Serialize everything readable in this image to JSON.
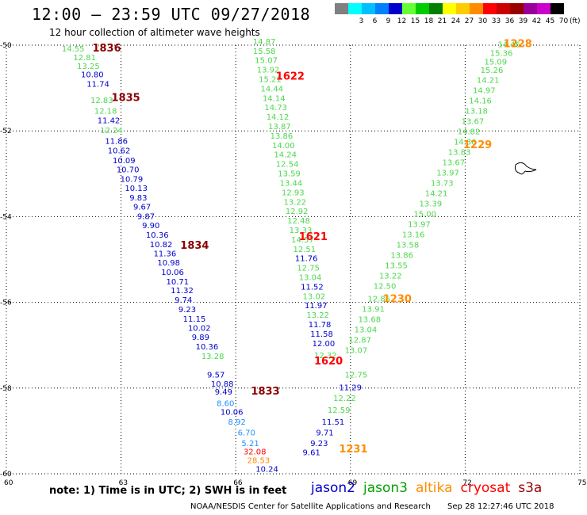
{
  "header": {
    "title": "12:00 – 23:59 UTC 09/27/2018",
    "subtitle": "12 hour collection of altimeter wave heights"
  },
  "scale": {
    "unit": "(ft)",
    "items": [
      {
        "label": "",
        "color": "#808080"
      },
      {
        "label": "3",
        "color": "#00ffff"
      },
      {
        "label": "6",
        "color": "#00bfff"
      },
      {
        "label": "9",
        "color": "#0080ff"
      },
      {
        "label": "12",
        "color": "#0000cd"
      },
      {
        "label": "15",
        "color": "#66ff33"
      },
      {
        "label": "18",
        "color": "#00cc00"
      },
      {
        "label": "21",
        "color": "#008000"
      },
      {
        "label": "24",
        "color": "#ffff00"
      },
      {
        "label": "27",
        "color": "#ffcc00"
      },
      {
        "label": "30",
        "color": "#ff8c00"
      },
      {
        "label": "33",
        "color": "#ff0000"
      },
      {
        "label": "36",
        "color": "#cc0000"
      },
      {
        "label": "39",
        "color": "#990000"
      },
      {
        "label": "42",
        "color": "#990099"
      },
      {
        "label": "45",
        "color": "#cc00cc"
      },
      {
        "label": "70",
        "color": "#000000"
      }
    ]
  },
  "footer": {
    "note": "note: 1) Time is in UTC; 2) SWH is in feet",
    "legend": [
      {
        "label": "jason2",
        "color": "#0000cd"
      },
      {
        "label": "jason3",
        "color": "#00a000"
      },
      {
        "label": "altika",
        "color": "#ff8c00"
      },
      {
        "label": "cryosat",
        "color": "#ff0000"
      },
      {
        "label": "s3a",
        "color": "#990000"
      }
    ],
    "credit": "NOAA/NESDIS Center for Satellite Applications and Research",
    "timestamp": "Sep 28 12:27:46 UTC 2018"
  },
  "chart_data": {
    "type": "scatter",
    "xlim": [
      60,
      75
    ],
    "ylim": [
      -60,
      -50
    ],
    "x_ticks": [
      "60",
      "63",
      "66",
      "69",
      "72",
      "75"
    ],
    "y_ticks": [
      "-50",
      "-52",
      "-54",
      "-56",
      "-58",
      "-60"
    ],
    "grid": true,
    "colors": {
      "green": "#4cd84c",
      "blue": "#0000cd",
      "cyan": "#1e90ff",
      "red": "#ff0000",
      "orange": "#ff8c00",
      "darkred": "#8b0000"
    },
    "time_labels": [
      {
        "text": "1836",
        "x": 62.25,
        "y": -50.15,
        "c": "darkred"
      },
      {
        "text": "1835",
        "x": 62.75,
        "y": -51.3,
        "c": "darkred"
      },
      {
        "text": "1834",
        "x": 64.55,
        "y": -54.75,
        "c": "darkred"
      },
      {
        "text": "1833",
        "x": 66.4,
        "y": -58.15,
        "c": "darkred"
      },
      {
        "text": "1622",
        "x": 67.05,
        "y": -50.8,
        "c": "red"
      },
      {
        "text": "1621",
        "x": 67.65,
        "y": -54.55,
        "c": "red"
      },
      {
        "text": "1620",
        "x": 68.05,
        "y": -57.45,
        "c": "red"
      },
      {
        "text": "1228",
        "x": 73.0,
        "y": -50.05,
        "c": "orange"
      },
      {
        "text": "1229",
        "x": 71.95,
        "y": -52.4,
        "c": "orange"
      },
      {
        "text": "1230",
        "x": 69.85,
        "y": -56.0,
        "c": "orange"
      },
      {
        "text": "1231",
        "x": 68.7,
        "y": -59.5,
        "c": "orange"
      }
    ],
    "series": [
      {
        "name": "jason2",
        "points": [
          {
            "x": 61.95,
            "y": -50.75,
            "v": "10.80",
            "c": "blue"
          },
          {
            "x": 62.1,
            "y": -50.97,
            "v": "11.74",
            "c": "blue"
          },
          {
            "x": 62.38,
            "y": -51.82,
            "v": "11.42",
            "c": "blue"
          },
          {
            "x": 62.58,
            "y": -52.3,
            "v": "11.86",
            "c": "blue"
          },
          {
            "x": 62.65,
            "y": -52.52,
            "v": "10.62",
            "c": "blue"
          },
          {
            "x": 62.78,
            "y": -52.75,
            "v": "10.09",
            "c": "blue"
          },
          {
            "x": 62.88,
            "y": -52.97,
            "v": "10.70",
            "c": "blue"
          },
          {
            "x": 62.98,
            "y": -53.19,
            "v": "10.79",
            "c": "blue"
          },
          {
            "x": 63.1,
            "y": -53.4,
            "v": "10.13",
            "c": "blue"
          },
          {
            "x": 63.22,
            "y": -53.62,
            "v": "9.83",
            "c": "blue"
          },
          {
            "x": 63.32,
            "y": -53.84,
            "v": "9.67",
            "c": "blue"
          },
          {
            "x": 63.42,
            "y": -54.06,
            "v": "9.87",
            "c": "blue"
          },
          {
            "x": 63.55,
            "y": -54.27,
            "v": "9.90",
            "c": "blue"
          },
          {
            "x": 63.65,
            "y": -54.49,
            "v": "10.36",
            "c": "blue"
          },
          {
            "x": 63.75,
            "y": -54.71,
            "v": "10.82",
            "c": "blue"
          },
          {
            "x": 63.85,
            "y": -54.93,
            "v": "11.36",
            "c": "blue"
          },
          {
            "x": 63.95,
            "y": -55.14,
            "v": "10.98",
            "c": "blue"
          },
          {
            "x": 64.05,
            "y": -55.36,
            "v": "10.06",
            "c": "blue"
          },
          {
            "x": 64.18,
            "y": -55.58,
            "v": "10.71",
            "c": "blue"
          },
          {
            "x": 64.3,
            "y": -55.79,
            "v": "11.32",
            "c": "blue"
          },
          {
            "x": 64.4,
            "y": -56.01,
            "v": "9.74",
            "c": "blue"
          },
          {
            "x": 64.5,
            "y": -56.23,
            "v": "9.23",
            "c": "blue"
          },
          {
            "x": 64.62,
            "y": -56.45,
            "v": "11.15",
            "c": "blue"
          },
          {
            "x": 64.75,
            "y": -56.66,
            "v": "10.02",
            "c": "blue"
          },
          {
            "x": 64.85,
            "y": -56.88,
            "v": "9.89",
            "c": "blue"
          },
          {
            "x": 64.95,
            "y": -57.1,
            "v": "10.36",
            "c": "blue"
          },
          {
            "x": 65.1,
            "y": -57.32,
            "v": "13.28",
            "c": "green"
          },
          {
            "x": 65.25,
            "y": -57.75,
            "v": "9.57",
            "c": "blue"
          },
          {
            "x": 65.35,
            "y": -57.97,
            "v": "10.88",
            "c": "blue"
          },
          {
            "x": 65.45,
            "y": -58.15,
            "v": "9.49",
            "c": "blue"
          },
          {
            "x": 65.5,
            "y": -58.42,
            "v": "8.60",
            "c": "cyan"
          },
          {
            "x": 65.6,
            "y": -58.62,
            "v": "10.06",
            "c": "blue"
          },
          {
            "x": 65.8,
            "y": -58.85,
            "v": "8.92",
            "c": "cyan"
          },
          {
            "x": 66.05,
            "y": -59.1,
            "v": "6.70",
            "c": "cyan"
          },
          {
            "x": 66.15,
            "y": -59.35,
            "v": "5.21",
            "c": "cyan"
          },
          {
            "x": 66.2,
            "y": -59.55,
            "v": "32.08",
            "c": "red"
          },
          {
            "x": 66.3,
            "y": -59.75,
            "v": "28.53",
            "c": "orange"
          },
          {
            "x": 66.52,
            "y": -59.95,
            "v": "10.24",
            "c": "blue"
          }
        ]
      },
      {
        "name": "jason3",
        "points": [
          {
            "x": 61.45,
            "y": -50.15,
            "v": "14.55",
            "c": "green"
          },
          {
            "x": 61.75,
            "y": -50.35,
            "v": "12.81",
            "c": "green"
          },
          {
            "x": 61.85,
            "y": -50.55,
            "v": "13.25",
            "c": "green"
          },
          {
            "x": 62.2,
            "y": -51.35,
            "v": "12.83",
            "c": "green"
          },
          {
            "x": 62.3,
            "y": -51.6,
            "v": "12.18",
            "c": "green"
          },
          {
            "x": 62.45,
            "y": -52.05,
            "v": "12.24",
            "c": "green"
          },
          {
            "x": 66.45,
            "y": -49.98,
            "v": "14.87",
            "c": "green"
          },
          {
            "x": 66.45,
            "y": -50.2,
            "v": "15.58",
            "c": "green"
          },
          {
            "x": 66.5,
            "y": -50.42,
            "v": "15.07",
            "c": "green"
          },
          {
            "x": 66.55,
            "y": -50.64,
            "v": "13.92",
            "c": "green"
          },
          {
            "x": 66.6,
            "y": -50.86,
            "v": "15.21",
            "c": "green"
          },
          {
            "x": 66.65,
            "y": -51.08,
            "v": "14.44",
            "c": "green"
          },
          {
            "x": 66.7,
            "y": -51.3,
            "v": "14.14",
            "c": "green"
          },
          {
            "x": 66.75,
            "y": -51.52,
            "v": "14.73",
            "c": "green"
          },
          {
            "x": 66.8,
            "y": -51.74,
            "v": "14.12",
            "c": "green"
          },
          {
            "x": 66.85,
            "y": -51.96,
            "v": "13.87",
            "c": "green"
          },
          {
            "x": 66.9,
            "y": -52.18,
            "v": "13.86",
            "c": "green"
          },
          {
            "x": 66.95,
            "y": -52.4,
            "v": "14.00",
            "c": "green"
          },
          {
            "x": 67.0,
            "y": -52.62,
            "v": "14.24",
            "c": "green"
          },
          {
            "x": 67.05,
            "y": -52.84,
            "v": "12.54",
            "c": "green"
          },
          {
            "x": 67.1,
            "y": -53.06,
            "v": "13.59",
            "c": "green"
          },
          {
            "x": 67.15,
            "y": -53.28,
            "v": "13.44",
            "c": "green"
          },
          {
            "x": 67.2,
            "y": -53.5,
            "v": "12.93",
            "c": "green"
          },
          {
            "x": 67.25,
            "y": -53.72,
            "v": "13.22",
            "c": "green"
          },
          {
            "x": 67.3,
            "y": -53.94,
            "v": "12.92",
            "c": "green"
          },
          {
            "x": 67.35,
            "y": -54.16,
            "v": "12.48",
            "c": "green"
          },
          {
            "x": 67.4,
            "y": -54.38,
            "v": "13.33",
            "c": "green"
          },
          {
            "x": 67.45,
            "y": -54.6,
            "v": "14.57",
            "c": "green"
          },
          {
            "x": 67.5,
            "y": -54.82,
            "v": "12.51",
            "c": "green"
          },
          {
            "x": 67.55,
            "y": -55.04,
            "v": "11.76",
            "c": "blue"
          },
          {
            "x": 67.6,
            "y": -55.26,
            "v": "12.75",
            "c": "green"
          },
          {
            "x": 67.65,
            "y": -55.48,
            "v": "13.04",
            "c": "green"
          },
          {
            "x": 67.7,
            "y": -55.7,
            "v": "11.52",
            "c": "blue"
          },
          {
            "x": 67.75,
            "y": -55.92,
            "v": "13.02",
            "c": "green"
          },
          {
            "x": 67.8,
            "y": -56.14,
            "v": "11.97",
            "c": "blue"
          },
          {
            "x": 67.85,
            "y": -56.36,
            "v": "13.22",
            "c": "green"
          },
          {
            "x": 67.9,
            "y": -56.58,
            "v": "11.78",
            "c": "blue"
          },
          {
            "x": 67.95,
            "y": -56.8,
            "v": "11.58",
            "c": "blue"
          },
          {
            "x": 68.0,
            "y": -57.02,
            "v": "12.00",
            "c": "blue"
          },
          {
            "x": 68.05,
            "y": -57.3,
            "v": "12.32",
            "c": "green"
          },
          {
            "x": 68.85,
            "y": -57.75,
            "v": "12.75",
            "c": "green"
          },
          {
            "x": 68.7,
            "y": -58.05,
            "v": "11.29",
            "c": "blue"
          },
          {
            "x": 68.55,
            "y": -58.3,
            "v": "12.22",
            "c": "green"
          },
          {
            "x": 68.4,
            "y": -58.58,
            "v": "12.59",
            "c": "green"
          },
          {
            "x": 68.25,
            "y": -58.85,
            "v": "11.51",
            "c": "blue"
          },
          {
            "x": 68.1,
            "y": -59.1,
            "v": "9.71",
            "c": "blue"
          },
          {
            "x": 67.95,
            "y": -59.35,
            "v": "9.23",
            "c": "blue"
          },
          {
            "x": 67.75,
            "y": -59.57,
            "v": "9.61",
            "c": "blue"
          }
        ]
      },
      {
        "name": "altika",
        "points": [
          {
            "x": 72.85,
            "y": -50.05,
            "v": "14.46",
            "c": "green"
          },
          {
            "x": 72.65,
            "y": -50.25,
            "v": "15.36",
            "c": "green"
          },
          {
            "x": 72.5,
            "y": -50.45,
            "v": "15.09",
            "c": "green"
          },
          {
            "x": 72.4,
            "y": -50.65,
            "v": "15.26",
            "c": "green"
          },
          {
            "x": 72.3,
            "y": -50.88,
            "v": "14.21",
            "c": "green"
          },
          {
            "x": 72.2,
            "y": -51.12,
            "v": "14.97",
            "c": "green"
          },
          {
            "x": 72.1,
            "y": -51.36,
            "v": "14.16",
            "c": "green"
          },
          {
            "x": 72.0,
            "y": -51.6,
            "v": "13.18",
            "c": "green"
          },
          {
            "x": 71.9,
            "y": -51.84,
            "v": "13.67",
            "c": "green"
          },
          {
            "x": 71.8,
            "y": -52.08,
            "v": "14.82",
            "c": "green"
          },
          {
            "x": 71.7,
            "y": -52.32,
            "v": "14.30",
            "c": "green"
          },
          {
            "x": 71.55,
            "y": -52.56,
            "v": "13.83",
            "c": "green"
          },
          {
            "x": 71.4,
            "y": -52.8,
            "v": "13.67",
            "c": "green"
          },
          {
            "x": 71.25,
            "y": -53.04,
            "v": "13.97",
            "c": "green"
          },
          {
            "x": 71.1,
            "y": -53.28,
            "v": "13.73",
            "c": "green"
          },
          {
            "x": 70.95,
            "y": -53.52,
            "v": "14.21",
            "c": "green"
          },
          {
            "x": 70.8,
            "y": -53.76,
            "v": "13.39",
            "c": "green"
          },
          {
            "x": 70.65,
            "y": -54.0,
            "v": "15.00",
            "c": "green"
          },
          {
            "x": 70.5,
            "y": -54.24,
            "v": "13.97",
            "c": "green"
          },
          {
            "x": 70.35,
            "y": -54.48,
            "v": "13.16",
            "c": "green"
          },
          {
            "x": 70.2,
            "y": -54.72,
            "v": "13.58",
            "c": "green"
          },
          {
            "x": 70.05,
            "y": -54.96,
            "v": "13.86",
            "c": "green"
          },
          {
            "x": 69.9,
            "y": -55.2,
            "v": "13.55",
            "c": "green"
          },
          {
            "x": 69.75,
            "y": -55.44,
            "v": "13.22",
            "c": "green"
          },
          {
            "x": 69.6,
            "y": -55.68,
            "v": "12.50",
            "c": "green"
          },
          {
            "x": 69.45,
            "y": -55.98,
            "v": "12.85",
            "c": "green"
          },
          {
            "x": 69.3,
            "y": -56.22,
            "v": "13.91",
            "c": "green"
          },
          {
            "x": 69.2,
            "y": -56.46,
            "v": "13.68",
            "c": "green"
          },
          {
            "x": 69.1,
            "y": -56.7,
            "v": "13.04",
            "c": "green"
          },
          {
            "x": 68.95,
            "y": -56.94,
            "v": "12.87",
            "c": "green"
          },
          {
            "x": 68.85,
            "y": -57.18,
            "v": "13.07",
            "c": "green"
          }
        ]
      }
    ]
  }
}
